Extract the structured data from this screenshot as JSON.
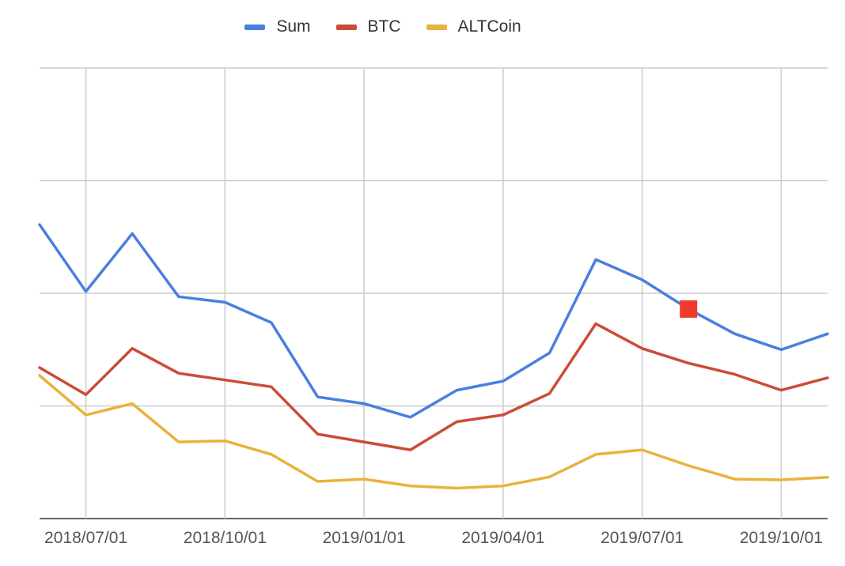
{
  "chart_data": {
    "type": "line",
    "x": [
      "2018/06/01",
      "2018/07/01",
      "2018/08/01",
      "2018/09/01",
      "2018/10/01",
      "2018/11/01",
      "2018/12/01",
      "2019/01/01",
      "2019/02/01",
      "2019/03/01",
      "2019/04/01",
      "2019/05/01",
      "2019/06/01",
      "2019/07/01",
      "2019/08/01",
      "2019/09/01",
      "2019/10/01",
      "2019/11/01"
    ],
    "x_ticks": [
      "2018/07/01",
      "2018/10/01",
      "2019/01/01",
      "2019/04/01",
      "2019/07/01",
      "2019/10/01"
    ],
    "ylim": [
      0,
      200
    ],
    "y_grid": [
      0,
      50,
      100,
      150,
      200
    ],
    "y_tick_labels_visible": false,
    "grid": true,
    "legend_position": "top",
    "series": [
      {
        "name": "Sum",
        "color": "#4a7fe0",
        "values": [
          130.5,
          100.8,
          126.5,
          98.5,
          96,
          87,
          54,
          51,
          45,
          57,
          61,
          73.5,
          115,
          106,
          93,
          82,
          75,
          82
        ]
      },
      {
        "name": "BTC",
        "color": "#cc4b37",
        "values": [
          67,
          55,
          75.5,
          64.5,
          61.5,
          58.5,
          37.5,
          34,
          30.5,
          43,
          46,
          55.5,
          86.5,
          75.5,
          69,
          64,
          57,
          62.5
        ]
      },
      {
        "name": "ALTCoin",
        "color": "#e8b33a",
        "values": [
          63.5,
          46,
          51,
          34,
          34.5,
          28.5,
          16.5,
          17.5,
          14.5,
          13.5,
          14.5,
          18.5,
          28.5,
          30.5,
          23.5,
          17.5,
          17.2,
          18.3
        ]
      }
    ],
    "highlight_marker": {
      "series": "Sum",
      "x": "2019/08/01",
      "value": 93,
      "color": "#f03a2e"
    }
  }
}
